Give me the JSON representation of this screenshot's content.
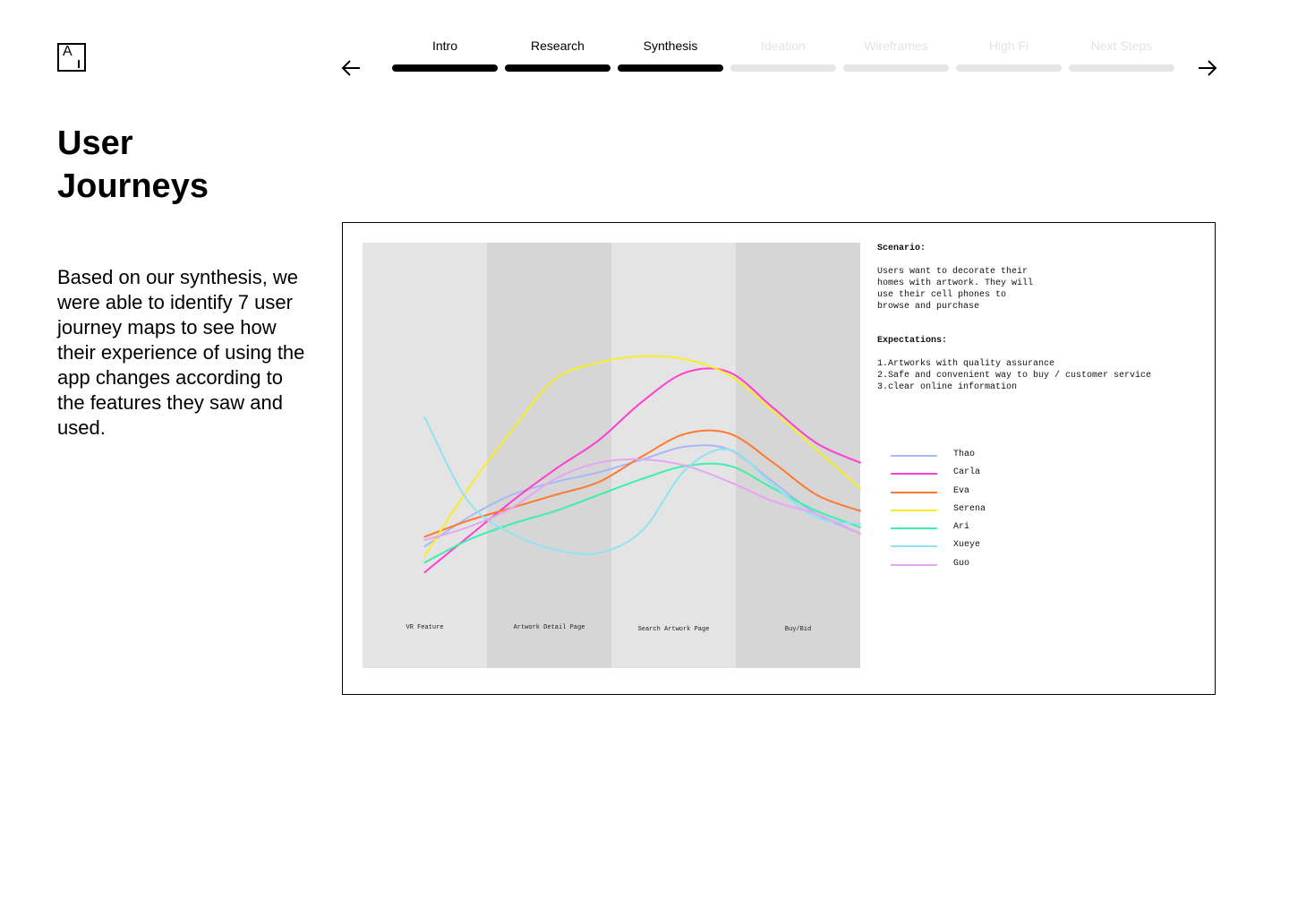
{
  "app": {
    "logo_letter": "A"
  },
  "nav": {
    "prev_icon": "arrow-left-icon",
    "next_icon": "arrow-right-icon",
    "steps": [
      {
        "label": "Intro",
        "state": "done"
      },
      {
        "label": "Research",
        "state": "done"
      },
      {
        "label": "Synthesis",
        "state": "current"
      },
      {
        "label": "Ideation",
        "state": "upcoming"
      },
      {
        "label": "Wireframes",
        "state": "upcoming"
      },
      {
        "label": "High Fi",
        "state": "upcoming"
      },
      {
        "label": "Next Steps",
        "state": "upcoming"
      }
    ]
  },
  "page": {
    "title_line1": "User",
    "title_line2": "Journeys",
    "body": "Based on our synthesis, we were able to identify 7 user journey maps to see how their experience of using the app changes according to the features they saw and used."
  },
  "figure": {
    "scenario_heading": "Scenario:",
    "scenario_lines": [
      "Users want to decorate their",
      "homes with artwork. They will",
      "use their cell phones to",
      "browse and purchase"
    ],
    "expectations_heading": "Expectations:",
    "expectations": [
      "1.Artworks with quality assurance",
      "2.Safe and convenient way to buy / customer service",
      "3.clear online information"
    ]
  },
  "chart_data": {
    "type": "line",
    "title": "",
    "xlabel": "",
    "ylabel": "",
    "grid": false,
    "legend_position": "right",
    "categories": [
      "VR Feature",
      "Artwork Detail Page",
      "Search Artwork Page",
      "Buy/Bid"
    ],
    "x": [
      0.0,
      0.35,
      0.7,
      1.05,
      1.4,
      1.75,
      2.1,
      2.45,
      2.8,
      3.15,
      3.5
    ],
    "ylim": [
      0,
      100
    ],
    "series": [
      {
        "name": "Thao",
        "color": "#a8b8f5",
        "values": [
          28,
          37,
          44,
          48,
          51,
          55,
          59,
          58,
          48,
          38,
          32
        ]
      },
      {
        "name": "Carla",
        "color": "#ff3fd2",
        "values": [
          20,
          31,
          42,
          52,
          61,
          73,
          82,
          82,
          71,
          60,
          54
        ]
      },
      {
        "name": "Eva",
        "color": "#ff7a2e",
        "values": [
          31,
          36,
          40,
          44,
          48,
          56,
          63,
          63,
          54,
          44,
          39
        ]
      },
      {
        "name": "Serena",
        "color": "#f5ee28",
        "values": [
          25,
          46,
          64,
          80,
          85,
          87,
          86,
          81,
          70,
          58,
          46
        ]
      },
      {
        "name": "Ari",
        "color": "#3cf0ac",
        "values": [
          23,
          30,
          35,
          39,
          44,
          49,
          53,
          53,
          46,
          39,
          34
        ]
      },
      {
        "name": "Xueye",
        "color": "#8fe3f2",
        "values": [
          68,
          42,
          32,
          27,
          26,
          33,
          52,
          58,
          47,
          37,
          35
        ]
      },
      {
        "name": "Guo",
        "color": "#e5a6f2",
        "values": [
          30,
          34,
          40,
          49,
          54,
          55,
          53,
          48,
          42,
          38,
          32
        ]
      }
    ]
  }
}
